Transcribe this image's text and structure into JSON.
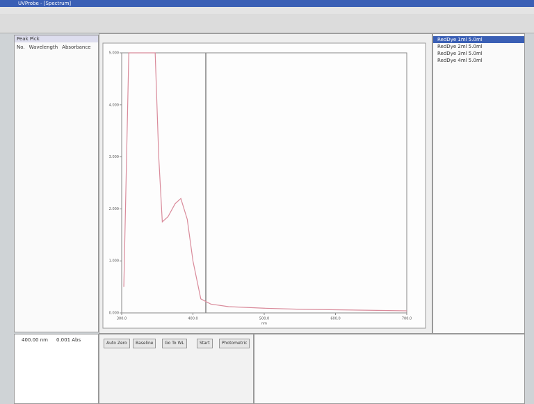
{
  "window": {
    "title": "UVProbe - [Spectrum]"
  },
  "left_panel": {
    "title": "Peak Pick",
    "headers": [
      "No.",
      "Wavelength",
      "Absorbance"
    ]
  },
  "readout": {
    "wavelength": "400.00 nm",
    "absorbance": "0.001 Abs"
  },
  "buttons": [
    "Auto Zero",
    "Baseline",
    "Go To WL",
    "Start",
    "Photometric"
  ],
  "legend_items": [
    "RedDye 1ml 5.0ml",
    "RedDye 2ml 5.0ml",
    "RedDye 3ml 5.0ml",
    "RedDye 4ml 5.0ml"
  ],
  "chart_data": {
    "type": "line",
    "x_label": "nm",
    "x": [
      303,
      310,
      320,
      347,
      352,
      357,
      365,
      375,
      383,
      392,
      400,
      411,
      425,
      450,
      500,
      550,
      600,
      650,
      700
    ],
    "series": [
      {
        "color": "#d98a9a",
        "values": [
          0.5,
          5,
          5,
          5,
          3.0,
          1.75,
          1.85,
          2.1,
          2.2,
          1.8,
          1.0,
          0.27,
          0.17,
          0.12,
          0.09,
          0.07,
          0.06,
          0.05,
          0.04
        ]
      }
    ],
    "xlim": [
      300,
      700
    ],
    "xticks": [
      {
        "value": 300,
        "label": "300.0"
      },
      {
        "value": 400,
        "label": "400.0"
      },
      {
        "value": 500,
        "label": "500.0"
      },
      {
        "value": 600,
        "label": "600.0"
      },
      {
        "value": 700,
        "label": "700.0"
      }
    ],
    "ylim": [
      0,
      5
    ],
    "yticks": [
      {
        "value": 0,
        "label": "0.000"
      },
      {
        "value": 1,
        "label": "1.000"
      },
      {
        "value": 2,
        "label": "2.000"
      },
      {
        "value": 3,
        "label": "3.000"
      },
      {
        "value": 4,
        "label": "4.000"
      },
      {
        "value": 5,
        "label": "5.000"
      }
    ]
  }
}
